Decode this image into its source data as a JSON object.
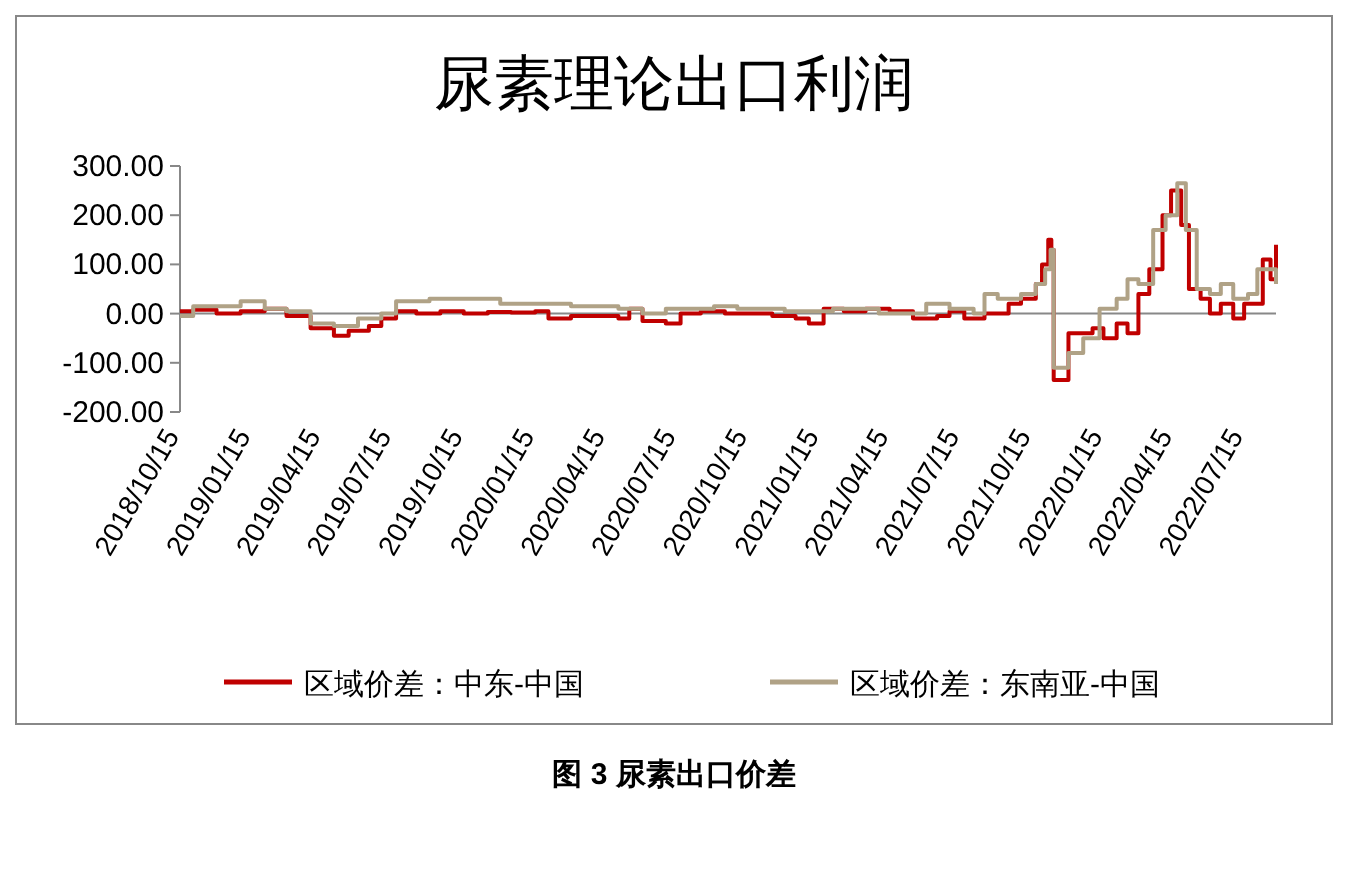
{
  "chart_data": {
    "type": "step",
    "title": "尿素理论出口利润",
    "xlim": [
      "2018-10-15",
      "2022-08-25"
    ],
    "xticks": [
      {
        "value": "2018-10-15",
        "label": "2018/10/15"
      },
      {
        "value": "2019-01-15",
        "label": "2019/01/15"
      },
      {
        "value": "2019-04-15",
        "label": "2019/04/15"
      },
      {
        "value": "2019-07-15",
        "label": "2019/07/15"
      },
      {
        "value": "2019-10-15",
        "label": "2019/10/15"
      },
      {
        "value": "2020-01-15",
        "label": "2020/01/15"
      },
      {
        "value": "2020-04-15",
        "label": "2020/04/15"
      },
      {
        "value": "2020-07-15",
        "label": "2020/07/15"
      },
      {
        "value": "2020-10-15",
        "label": "2020/10/15"
      },
      {
        "value": "2021-01-15",
        "label": "2021/01/15"
      },
      {
        "value": "2021-04-15",
        "label": "2021/04/15"
      },
      {
        "value": "2021-07-15",
        "label": "2021/07/15"
      },
      {
        "value": "2021-10-15",
        "label": "2021/10/15"
      },
      {
        "value": "2022-01-15",
        "label": "2022/01/15"
      },
      {
        "value": "2022-04-15",
        "label": "2022/04/15"
      },
      {
        "value": "2022-07-15",
        "label": "2022/07/15"
      }
    ],
    "ylim": [
      -200,
      300
    ],
    "yticks": [
      {
        "value": -200,
        "label": "-200.00"
      },
      {
        "value": -100,
        "label": "-100.00"
      },
      {
        "value": 0,
        "label": "0.00"
      },
      {
        "value": 100,
        "label": "100.00"
      },
      {
        "value": 200,
        "label": "200.00"
      },
      {
        "value": 300,
        "label": "300.00"
      }
    ],
    "grid": false,
    "legend": "bottom",
    "ref_lines": [
      {
        "axis": "y",
        "value": 0,
        "color": "#888888"
      }
    ],
    "annotations": [
      "图 3 尿素出口价差"
    ],
    "series": [
      {
        "name": "区域价差：中东-中国",
        "color": "#c00000",
        "x": [
          "2018-10-15",
          "2018-11-01",
          "2018-12-01",
          "2019-01-01",
          "2019-02-01",
          "2019-03-01",
          "2019-04-01",
          "2019-05-01",
          "2019-05-20",
          "2019-06-15",
          "2019-07-01",
          "2019-07-20",
          "2019-08-15",
          "2019-09-15",
          "2019-10-15",
          "2019-11-15",
          "2019-12-15",
          "2020-01-15",
          "2020-02-01",
          "2020-03-01",
          "2020-04-01",
          "2020-05-01",
          "2020-05-15",
          "2020-06-01",
          "2020-07-01",
          "2020-07-20",
          "2020-08-15",
          "2020-09-15",
          "2020-10-15",
          "2020-11-15",
          "2020-12-15",
          "2021-01-01",
          "2021-01-20",
          "2021-02-15",
          "2021-03-15",
          "2021-04-15",
          "2021-05-15",
          "2021-06-15",
          "2021-07-01",
          "2021-07-20",
          "2021-08-15",
          "2021-09-15",
          "2021-10-01",
          "2021-10-20",
          "2021-10-28",
          "2021-11-05",
          "2021-11-09",
          "2021-11-12",
          "2021-12-01",
          "2021-12-20",
          "2022-01-01",
          "2022-01-15",
          "2022-02-01",
          "2022-02-15",
          "2022-03-01",
          "2022-03-15",
          "2022-04-01",
          "2022-04-12",
          "2022-04-25",
          "2022-05-05",
          "2022-05-20",
          "2022-06-01",
          "2022-06-15",
          "2022-07-01",
          "2022-07-15",
          "2022-08-01",
          "2022-08-08",
          "2022-08-18",
          "2022-08-25"
        ],
        "values": [
          5,
          8,
          0,
          5,
          10,
          -5,
          -30,
          -45,
          -35,
          -25,
          -10,
          5,
          0,
          5,
          0,
          3,
          2,
          5,
          -10,
          -5,
          -5,
          -10,
          10,
          -15,
          -20,
          0,
          5,
          0,
          0,
          -5,
          -10,
          -20,
          10,
          5,
          10,
          5,
          -10,
          -5,
          5,
          -10,
          0,
          20,
          30,
          60,
          100,
          150,
          130,
          -135,
          -40,
          -40,
          -30,
          -50,
          -20,
          -40,
          40,
          90,
          200,
          250,
          180,
          50,
          30,
          0,
          20,
          -10,
          20,
          20,
          110,
          70,
          140
        ]
      },
      {
        "name": "区域价差：东南亚-中国",
        "color": "#b0a286",
        "x": [
          "2018-10-15",
          "2018-11-01",
          "2019-01-01",
          "2019-02-01",
          "2019-03-01",
          "2019-04-01",
          "2019-05-01",
          "2019-06-01",
          "2019-07-01",
          "2019-07-20",
          "2019-09-01",
          "2019-12-01",
          "2020-03-01",
          "2020-05-01",
          "2020-06-01",
          "2020-07-01",
          "2020-09-01",
          "2020-10-01",
          "2020-12-01",
          "2021-02-01",
          "2021-04-01",
          "2021-06-01",
          "2021-07-01",
          "2021-08-01",
          "2021-08-15",
          "2021-09-01",
          "2021-10-01",
          "2021-10-20",
          "2021-11-01",
          "2021-11-08",
          "2021-11-12",
          "2021-12-01",
          "2021-12-20",
          "2022-01-10",
          "2022-02-01",
          "2022-02-15",
          "2022-03-01",
          "2022-03-20",
          "2022-04-05",
          "2022-04-20",
          "2022-05-01",
          "2022-05-15",
          "2022-06-01",
          "2022-06-15",
          "2022-07-01",
          "2022-07-20",
          "2022-08-01",
          "2022-08-25"
        ],
        "values": [
          -5,
          15,
          25,
          10,
          5,
          -20,
          -25,
          -10,
          0,
          25,
          30,
          20,
          15,
          10,
          0,
          10,
          15,
          10,
          5,
          10,
          0,
          20,
          10,
          0,
          40,
          30,
          40,
          60,
          90,
          130,
          -110,
          -80,
          -50,
          10,
          30,
          70,
          60,
          170,
          200,
          265,
          170,
          50,
          40,
          60,
          30,
          40,
          90,
          60
        ]
      }
    ]
  }
}
